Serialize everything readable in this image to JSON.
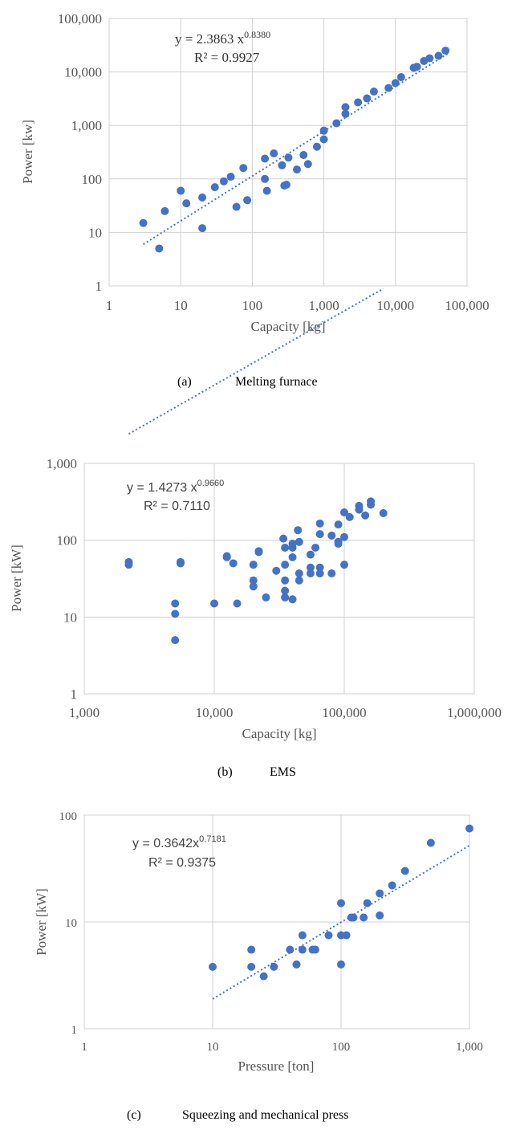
{
  "chart_data": [
    {
      "type": "scatter",
      "xscale": "log",
      "yscale": "log",
      "xlim": [
        1,
        100000
      ],
      "ylim": [
        1,
        100000
      ],
      "xticks": [
        "1",
        "10",
        "100",
        "1,000",
        "10,000",
        "100,000"
      ],
      "yticks": [
        "1",
        "10",
        "100",
        "1,000",
        "10,000",
        "100,000"
      ],
      "xlabel": "Capacity [kg]",
      "ylabel": "Power [kw]",
      "equation_prefix": "y = 2.3863  x",
      "equation_exp": "0.8380",
      "r2": "R² = 0.9927",
      "caption_label": "(a)",
      "caption_text": "Melting furnace",
      "trend": {
        "a": 2.3863,
        "b": 0.838,
        "x_range": [
          3,
          55000
        ]
      },
      "color": "#4472c4",
      "points": [
        [
          3,
          15
        ],
        [
          5,
          5
        ],
        [
          6,
          25
        ],
        [
          10,
          60
        ],
        [
          12,
          35
        ],
        [
          20,
          45
        ],
        [
          20,
          12
        ],
        [
          30,
          70
        ],
        [
          40,
          90
        ],
        [
          50,
          110
        ],
        [
          60,
          30
        ],
        [
          75,
          160
        ],
        [
          85,
          40
        ],
        [
          150,
          240
        ],
        [
          150,
          100
        ],
        [
          160,
          60
        ],
        [
          200,
          300
        ],
        [
          260,
          180
        ],
        [
          280,
          75
        ],
        [
          300,
          78
        ],
        [
          320,
          250
        ],
        [
          420,
          150
        ],
        [
          520,
          280
        ],
        [
          600,
          190
        ],
        [
          800,
          400
        ],
        [
          1000,
          550
        ],
        [
          1000,
          800
        ],
        [
          1500,
          1100
        ],
        [
          2000,
          2200
        ],
        [
          2000,
          1650
        ],
        [
          3000,
          2700
        ],
        [
          4000,
          3200
        ],
        [
          5000,
          4300
        ],
        [
          8000,
          5000
        ],
        [
          10000,
          6200
        ],
        [
          12000,
          8000
        ],
        [
          18000,
          12000
        ],
        [
          20000,
          12500
        ],
        [
          25000,
          16000
        ],
        [
          30000,
          18000
        ],
        [
          40000,
          20000
        ],
        [
          50000,
          25000
        ]
      ]
    },
    {
      "type": "scatter",
      "xscale": "log",
      "yscale": "log",
      "xlim": [
        1000,
        1000000
      ],
      "ylim": [
        1,
        1000
      ],
      "xticks": [
        "1,000",
        "10,000",
        "100,000",
        "1,000,000"
      ],
      "yticks": [
        "1",
        "10",
        "100",
        "1,000"
      ],
      "xlabel": "Capacity [kg]",
      "ylabel": "Power [kW]",
      "equation_prefix": "y = 1.4273 x",
      "equation_exp": "0.9660",
      "r2": "R² = 0.7110",
      "caption_label": "(b)",
      "caption_text": "EMS",
      "trend": {
        "a": 1.4273,
        "b": 0.966,
        "x_range": [
          2200,
          200000
        ]
      },
      "color": "#4472c4",
      "points": [
        [
          2200,
          48
        ],
        [
          2200,
          52
        ],
        [
          5000,
          15
        ],
        [
          5000,
          11
        ],
        [
          5000,
          5
        ],
        [
          5500,
          50
        ],
        [
          5500,
          52
        ],
        [
          10000,
          15
        ],
        [
          12500,
          60
        ],
        [
          12500,
          62
        ],
        [
          14000,
          50
        ],
        [
          15000,
          15
        ],
        [
          20000,
          48
        ],
        [
          20000,
          30
        ],
        [
          20000,
          25
        ],
        [
          22000,
          72
        ],
        [
          22000,
          70
        ],
        [
          25000,
          18
        ],
        [
          30000,
          40
        ],
        [
          34000,
          105
        ],
        [
          35000,
          80
        ],
        [
          35000,
          48
        ],
        [
          35000,
          30
        ],
        [
          35000,
          22
        ],
        [
          35000,
          18
        ],
        [
          40000,
          80
        ],
        [
          40000,
          60
        ],
        [
          40000,
          90
        ],
        [
          40000,
          17
        ],
        [
          44000,
          135
        ],
        [
          45000,
          95
        ],
        [
          45000,
          37
        ],
        [
          45000,
          30
        ],
        [
          55000,
          65
        ],
        [
          55000,
          44
        ],
        [
          55000,
          37
        ],
        [
          60000,
          80
        ],
        [
          65000,
          165
        ],
        [
          65000,
          120
        ],
        [
          65000,
          44
        ],
        [
          65000,
          37
        ],
        [
          80000,
          115
        ],
        [
          80000,
          37
        ],
        [
          90000,
          160
        ],
        [
          90000,
          95
        ],
        [
          90000,
          90
        ],
        [
          100000,
          230
        ],
        [
          100000,
          110
        ],
        [
          100000,
          48
        ],
        [
          110000,
          200
        ],
        [
          130000,
          250
        ],
        [
          130000,
          280
        ],
        [
          145000,
          210
        ],
        [
          160000,
          320
        ],
        [
          160000,
          290
        ],
        [
          200000,
          225
        ]
      ]
    },
    {
      "type": "scatter",
      "xscale": "log",
      "yscale": "log",
      "xlim": [
        1,
        1000
      ],
      "ylim": [
        1,
        100
      ],
      "xticks": [
        "1",
        "10",
        "100",
        "1,000"
      ],
      "yticks": [
        "1",
        "10",
        "100"
      ],
      "xlabel": "Pressure [ton]",
      "ylabel": "Power [kW]",
      "equation_prefix": "y = 0.3642x",
      "equation_exp": "0.7181",
      "r2": "R² = 0.9375",
      "caption_label": "(c)",
      "caption_text": "Squeezing and mechanical press",
      "trend": {
        "a": 0.3642,
        "b": 0.7181,
        "x_range": [
          10,
          1000
        ]
      },
      "color": "#4472c4",
      "points": [
        [
          10,
          3.8
        ],
        [
          20,
          3.8
        ],
        [
          20,
          5.5
        ],
        [
          25,
          3.1
        ],
        [
          30,
          3.8
        ],
        [
          40,
          5.5
        ],
        [
          45,
          4
        ],
        [
          50,
          5.5
        ],
        [
          50,
          7.5
        ],
        [
          60,
          5.5
        ],
        [
          63,
          5.5
        ],
        [
          80,
          7.5
        ],
        [
          100,
          15
        ],
        [
          100,
          7.5
        ],
        [
          100,
          4
        ],
        [
          110,
          7.5
        ],
        [
          120,
          11
        ],
        [
          125,
          11
        ],
        [
          150,
          11
        ],
        [
          160,
          15
        ],
        [
          200,
          18.5
        ],
        [
          200,
          11.5
        ],
        [
          250,
          22
        ],
        [
          315,
          30
        ],
        [
          500,
          55
        ],
        [
          1000,
          75
        ]
      ]
    }
  ]
}
